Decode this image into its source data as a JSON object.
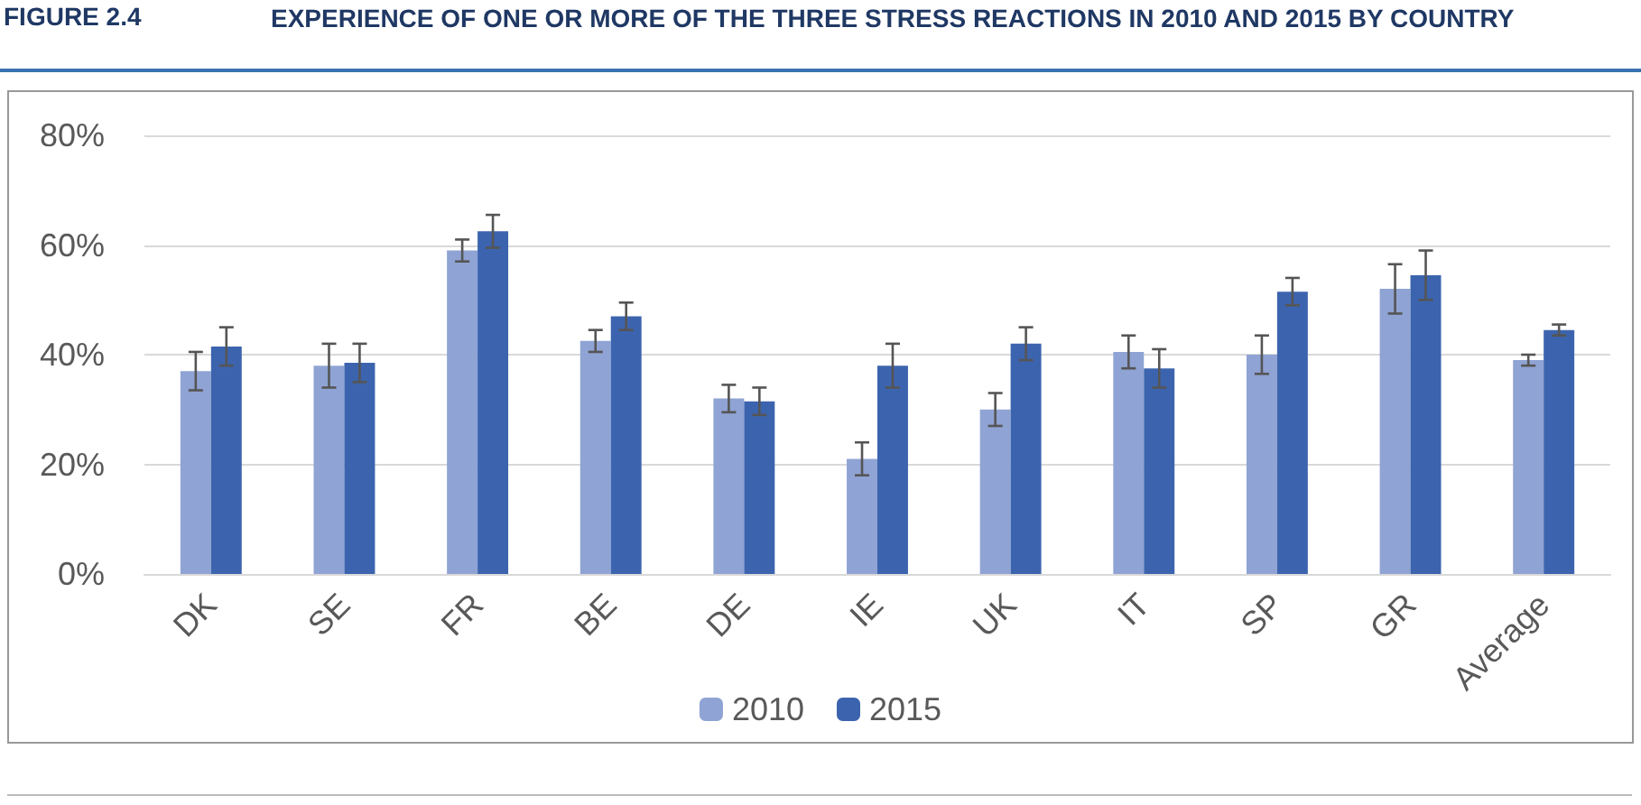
{
  "chart_data": {
    "type": "bar",
    "title": "EXPERIENCE OF ONE OR MORE OF THE THREE STRESS REACTIONS IN 2010 AND 2015 BY COUNTRY",
    "annotations": [
      "FIGURE 2.4"
    ],
    "categories": [
      "DK",
      "SE",
      "FR",
      "BE",
      "DE",
      "IE",
      "UK",
      "IT",
      "SP",
      "GR",
      "Average"
    ],
    "series": [
      {
        "name": "2010",
        "color": "#8fa3d4",
        "values": [
          37,
          38,
          59,
          42.5,
          32,
          21,
          30,
          40.5,
          40,
          52,
          39
        ],
        "errors": [
          3.5,
          4,
          2,
          2,
          2.5,
          3,
          3,
          3,
          3.5,
          4.5,
          1
        ]
      },
      {
        "name": "2015",
        "color": "#3c64ae",
        "values": [
          41.5,
          38.5,
          62.5,
          47,
          31.5,
          38,
          42,
          37.5,
          51.5,
          54.5,
          44.5
        ],
        "errors": [
          3.5,
          3.5,
          3,
          2.5,
          2.5,
          4,
          3,
          3.5,
          2.5,
          4.5,
          1
        ]
      }
    ],
    "ylim": [
      0,
      80
    ],
    "yticks": [
      {
        "value": 0,
        "label": "0%"
      },
      {
        "value": 20,
        "label": "20%"
      },
      {
        "value": 40,
        "label": "40%"
      },
      {
        "value": 60,
        "label": "60%"
      },
      {
        "value": 80,
        "label": "80%"
      }
    ],
    "grid": "y",
    "legend": "bottom"
  }
}
